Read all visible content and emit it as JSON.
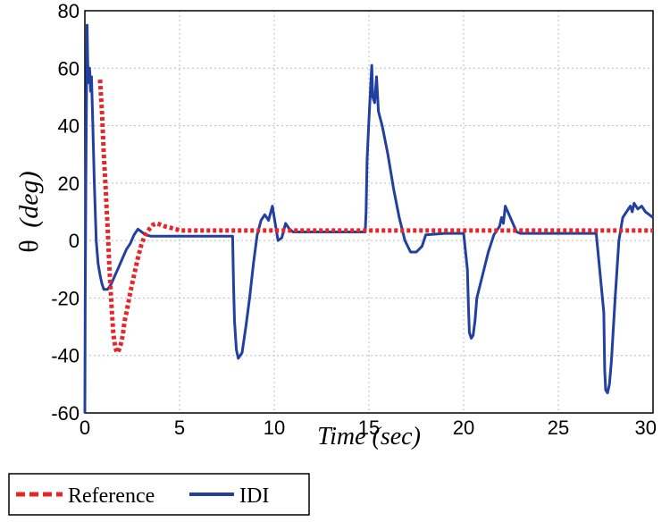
{
  "chart_data": {
    "type": "line",
    "title": "",
    "xlabel": "Time (sec)",
    "ylabel_symbol": "θ",
    "ylabel_unit": "(deg)",
    "xlim": [
      0,
      30
    ],
    "ylim": [
      -60,
      80
    ],
    "xticks": [
      0,
      5,
      10,
      15,
      20,
      25,
      30
    ],
    "yticks": [
      -60,
      -40,
      -20,
      0,
      20,
      40,
      60,
      80
    ],
    "grid": true,
    "legend_position": "bottom-left, outside plot",
    "series": [
      {
        "name": "Reference",
        "color": "#e8262a",
        "style": "dashed",
        "x": [
          0.8,
          0.9,
          1.0,
          1.1,
          1.2,
          1.3,
          1.4,
          1.5,
          1.6,
          1.7,
          1.8,
          1.9,
          2.0,
          2.1,
          2.2,
          2.4,
          2.6,
          2.8,
          3.0,
          3.2,
          3.4,
          3.6,
          3.8,
          4.0,
          4.2,
          4.5,
          4.8,
          5.0,
          6,
          8,
          10,
          12,
          14,
          16,
          18,
          20,
          22,
          24,
          26,
          28,
          30
        ],
        "y": [
          56,
          45,
          30,
          18,
          5,
          -10,
          -22,
          -32,
          -37,
          -39,
          -38,
          -36,
          -33,
          -28,
          -25,
          -18,
          -12,
          -6,
          -1,
          2,
          4,
          5.5,
          6,
          5.5,
          5,
          4.5,
          4,
          3.5,
          3.5,
          3.5,
          3.5,
          3.5,
          3.5,
          3.5,
          3.5,
          3.5,
          3.5,
          3.5,
          3.5,
          3.5,
          3.5
        ]
      },
      {
        "name": "IDI",
        "color": "#2240a0",
        "style": "solid",
        "x": [
          0,
          0.02,
          0.05,
          0.08,
          0.1,
          0.12,
          0.15,
          0.2,
          0.25,
          0.3,
          0.35,
          0.4,
          0.5,
          0.6,
          0.7,
          0.8,
          0.9,
          1.0,
          1.2,
          1.4,
          1.6,
          1.8,
          2.0,
          2.2,
          2.4,
          2.6,
          2.8,
          3.0,
          3.2,
          3.5,
          4.0,
          5.0,
          6.0,
          7.0,
          7.8,
          7.85,
          7.9,
          8.0,
          8.1,
          8.3,
          8.5,
          8.7,
          8.9,
          9.1,
          9.3,
          9.5,
          9.7,
          9.9,
          10.0,
          10.2,
          10.4,
          10.6,
          10.8,
          11.0,
          11.5,
          12.0,
          12.5,
          13.0,
          13.5,
          14.0,
          14.5,
          14.8,
          14.85,
          14.9,
          15.0,
          15.1,
          15.15,
          15.2,
          15.3,
          15.4,
          15.5,
          15.7,
          16.0,
          16.3,
          16.6,
          16.9,
          17.2,
          17.5,
          17.8,
          18.0,
          19.0,
          20.0,
          20.2,
          20.25,
          20.3,
          20.4,
          20.5,
          20.6,
          20.7,
          21.0,
          21.3,
          21.6,
          21.9,
          22.0,
          22.1,
          22.2,
          22.4,
          22.6,
          22.8,
          23.0,
          24.0,
          25.0,
          26.0,
          27.0,
          27.4,
          27.45,
          27.5,
          27.6,
          27.7,
          27.8,
          28.0,
          28.2,
          28.4,
          28.6,
          28.8,
          28.9,
          29.0,
          29.2,
          29.4,
          29.6,
          29.8,
          30.0
        ],
        "y": [
          -60,
          -20,
          20,
          45,
          60,
          75,
          62,
          55,
          60,
          52,
          57,
          45,
          20,
          0,
          -8,
          -12,
          -15,
          -17,
          -17,
          -15,
          -12,
          -9,
          -6,
          -3,
          -1,
          2,
          4,
          3,
          2,
          1.5,
          1.5,
          1.5,
          1.5,
          1.5,
          1.5,
          -15,
          -28,
          -38,
          -41,
          -39,
          -30,
          -20,
          -8,
          2,
          7,
          9,
          7,
          12,
          8,
          0,
          1,
          6,
          4,
          3,
          3,
          3,
          3,
          3,
          3,
          3,
          3,
          3,
          10,
          28,
          42,
          55,
          61,
          50,
          48,
          57,
          45,
          40,
          30,
          18,
          8,
          0,
          -4,
          -4,
          -2,
          2,
          2.5,
          2.5,
          -10,
          -22,
          -32,
          -34,
          -33,
          -28,
          -20,
          -12,
          -4,
          2,
          5,
          8,
          6,
          12,
          9,
          6,
          3,
          2.5,
          2.5,
          2.5,
          2.5,
          2.5,
          -25,
          -45,
          -52,
          -53,
          -50,
          -42,
          -20,
          0,
          8,
          10,
          12,
          10,
          13,
          11,
          12,
          10,
          9,
          8
        ]
      }
    ]
  }
}
